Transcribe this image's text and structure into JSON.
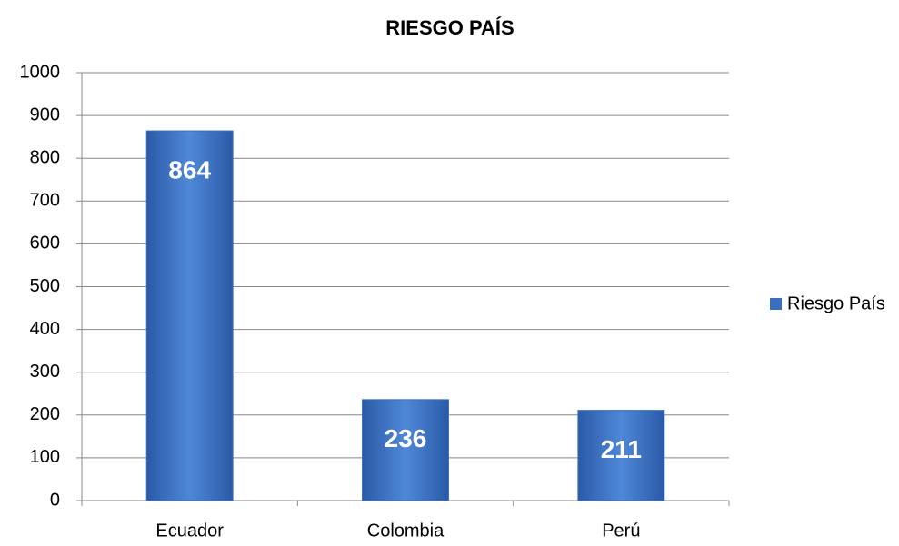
{
  "chart_data": {
    "type": "bar",
    "title": "RIESGO PAÍS",
    "categories": [
      "Ecuador",
      "Colombia",
      "Perú"
    ],
    "series": [
      {
        "name": "Riesgo País",
        "color": "#3a6fc0",
        "values": [
          864,
          236,
          211
        ]
      }
    ],
    "ylim": [
      0,
      1000
    ],
    "yticks": [
      0,
      100,
      200,
      300,
      400,
      500,
      600,
      700,
      800,
      900,
      1000
    ],
    "grid": true,
    "legend": "right"
  }
}
